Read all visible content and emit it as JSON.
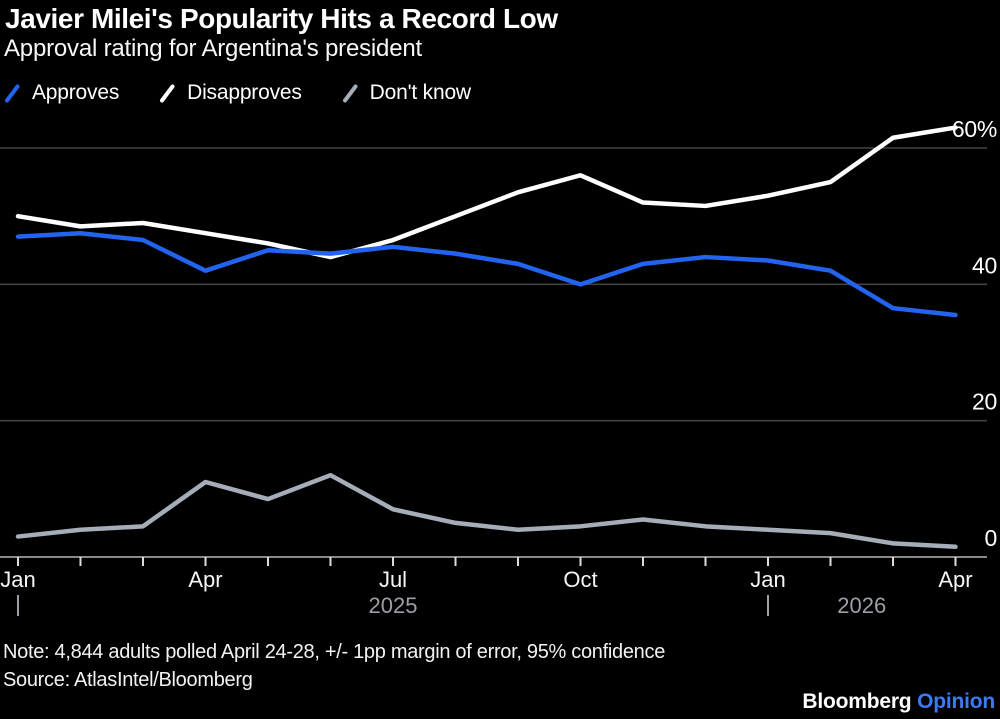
{
  "header": {
    "title": "Javier Milei's Popularity Hits a Record Low",
    "subtitle": "Approval rating for Argentina's president"
  },
  "legend": [
    {
      "id": "approves",
      "label": "Approves",
      "color": "#2264f0"
    },
    {
      "id": "disapproves",
      "label": "Disapproves",
      "color": "#ffffff"
    },
    {
      "id": "dont-know",
      "label": "Don't know",
      "color": "#a4adb8"
    }
  ],
  "chart_data": {
    "type": "line",
    "title": "Javier Milei's Popularity Hits a Record Low",
    "subtitle": "Approval rating for Argentina's president",
    "x_categories": [
      "Jan 2025",
      "Feb 2025",
      "Mar 2025",
      "Apr 2025",
      "May 2025",
      "Jun 2025",
      "Jul 2025",
      "Aug 2025",
      "Sep 2025",
      "Oct 2025",
      "Nov 2025",
      "Dec 2025",
      "Jan 2026",
      "Feb 2026",
      "Mar 2026",
      "Apr 2026"
    ],
    "series": [
      {
        "id": "approves",
        "name": "Approves",
        "color": "#2264f0",
        "values": [
          47,
          47.5,
          46.5,
          42,
          45,
          44.5,
          45.5,
          44.5,
          43,
          40,
          43,
          44,
          43.5,
          42,
          36.5,
          35.5
        ]
      },
      {
        "id": "disapproves",
        "name": "Disapproves",
        "color": "#ffffff",
        "values": [
          50,
          48.5,
          49,
          47.5,
          46,
          44,
          46.5,
          50,
          53.5,
          56,
          52,
          51.5,
          53,
          55,
          61.5,
          63
        ]
      },
      {
        "id": "dont-know",
        "name": "Don't know",
        "color": "#a4adb8",
        "values": [
          3,
          4,
          4.5,
          11,
          8.5,
          12,
          7,
          5,
          4,
          4.5,
          5.5,
          4.5,
          4,
          3.5,
          2,
          1.5
        ]
      }
    ],
    "y_axis": {
      "side": "right",
      "range": [
        0,
        65.5
      ],
      "gridlines": true,
      "ticks": [
        {
          "value": 0,
          "label": "0"
        },
        {
          "value": 20,
          "label": "20"
        },
        {
          "value": 40,
          "label": "40"
        },
        {
          "value": 60,
          "label": "60%"
        }
      ]
    },
    "x_axis": {
      "labeled_ticks": [
        {
          "index": 0,
          "label": "Jan"
        },
        {
          "index": 3,
          "label": "Apr"
        },
        {
          "index": 6,
          "label": "Jul"
        },
        {
          "index": 9,
          "label": "Oct"
        },
        {
          "index": 12,
          "label": "Jan"
        },
        {
          "index": 15,
          "label": "Apr"
        }
      ],
      "year_markers": [
        {
          "index": 0,
          "label": "2025"
        },
        {
          "index": 12,
          "label": "2026"
        }
      ]
    },
    "legend_position": "top-left"
  },
  "footer": {
    "note": "Note: 4,844 adults polled April 24-28, +/- 1pp margin of error, 95% confidence",
    "source": "Source: AtlasIntel/Bloomberg",
    "brand": "Bloomberg",
    "brand_suffix": "Opinion"
  },
  "colors": {
    "background": "#000000",
    "approves_blue": "#2264f0",
    "disapproves_white": "#ffffff",
    "dont_know_gray": "#a4adb8",
    "gridline": "#424242",
    "axis_line": "#8a8a8a",
    "tick": "#dcdcdc",
    "month_label": "#f5f5f5",
    "year_label": "#9aa0a6",
    "axis_value_label": "#ffffff",
    "brand_blue": "#3d7af5"
  }
}
